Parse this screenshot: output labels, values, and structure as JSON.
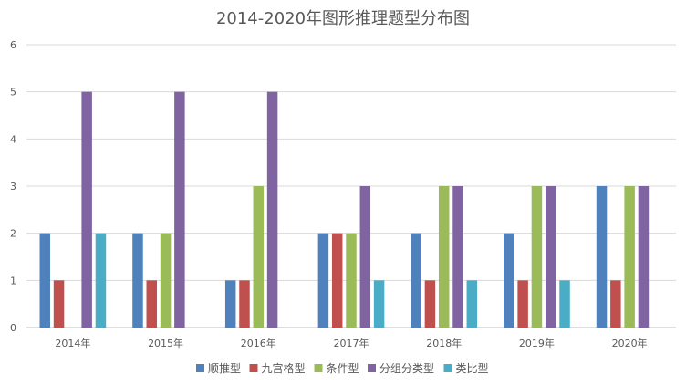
{
  "chart_data": {
    "type": "bar",
    "title": "2014-2020年图形推理题型分布图",
    "xlabel": "",
    "ylabel": "",
    "categories": [
      "2014年",
      "2015年",
      "2016年",
      "2017年",
      "2018年",
      "2019年",
      "2020年"
    ],
    "ylim": [
      0,
      6
    ],
    "yticks": [
      0,
      1,
      2,
      3,
      4,
      5,
      6
    ],
    "grid": "horizontal",
    "legend_position": "bottom",
    "series": [
      {
        "name": "顺推型",
        "color": "#4f81bd",
        "values": [
          2,
          2,
          1,
          2,
          2,
          2,
          3
        ]
      },
      {
        "name": "九宫格型",
        "color": "#c0504d",
        "values": [
          1,
          1,
          1,
          2,
          1,
          1,
          1
        ]
      },
      {
        "name": "条件型",
        "color": "#9bbb59",
        "values": [
          0,
          2,
          3,
          2,
          3,
          3,
          3
        ]
      },
      {
        "name": "分组分类型",
        "color": "#8064a2",
        "values": [
          5,
          5,
          5,
          3,
          3,
          3,
          3
        ]
      },
      {
        "name": "类比型",
        "color": "#4bacc6",
        "values": [
          2,
          0,
          0,
          1,
          1,
          1,
          0
        ]
      }
    ]
  }
}
